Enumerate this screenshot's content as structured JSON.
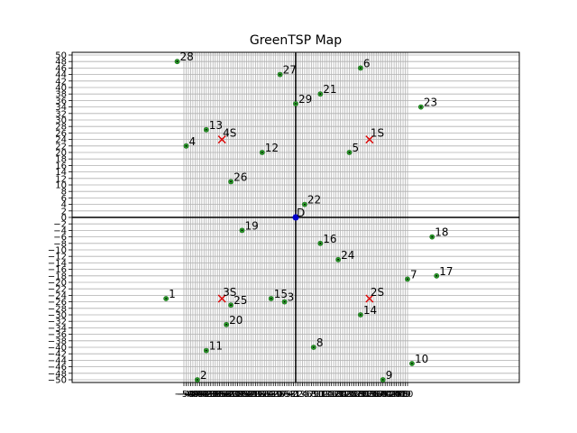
{
  "chart_data": {
    "type": "scatter",
    "title": "GreenTSP Map",
    "xlabel": "",
    "ylabel": "",
    "xlim": [
      -50,
      50
    ],
    "ylim": [
      -50,
      50
    ],
    "grid": true,
    "x_ticks": [
      -50,
      -49,
      -48,
      -47,
      -46,
      -45,
      -44,
      -43,
      -42,
      -41,
      -40,
      -39,
      -38,
      -37,
      -36,
      -35,
      -34,
      -33,
      -32,
      -31,
      -30,
      -29,
      -28,
      -27,
      -26,
      -25,
      -24,
      -23,
      -22,
      -21,
      -20,
      -19,
      -18,
      -17,
      -16,
      -15,
      -14,
      -13,
      -12,
      -11,
      -10,
      -9,
      -8,
      -7,
      -6,
      -5,
      -4,
      -3,
      -2,
      -1,
      0,
      1,
      2,
      3,
      4,
      5,
      6,
      7,
      8,
      9,
      10,
      11,
      12,
      13,
      14,
      15,
      16,
      17,
      18,
      19,
      20,
      21,
      22,
      23,
      24,
      25,
      26,
      27,
      28,
      29,
      30,
      31,
      32,
      33,
      34,
      35,
      36,
      37,
      38,
      39,
      40,
      41,
      42,
      43,
      44,
      45,
      46,
      47,
      48,
      49,
      50
    ],
    "y_ticks": [
      -50,
      -48,
      -46,
      -44,
      -42,
      -40,
      -38,
      -36,
      -34,
      -32,
      -30,
      -28,
      -26,
      -24,
      -22,
      -20,
      -18,
      -16,
      -14,
      -12,
      -10,
      -8,
      -6,
      -4,
      -2,
      0,
      2,
      4,
      6,
      8,
      10,
      12,
      14,
      16,
      18,
      20,
      22,
      24,
      26,
      28,
      30,
      32,
      34,
      36,
      38,
      40,
      42,
      44,
      46,
      48,
      50
    ],
    "depot": {
      "label": "D",
      "x": 0,
      "y": 0,
      "color": "#0000cc"
    },
    "stations": [
      {
        "label": "1S",
        "x": 33,
        "y": 24
      },
      {
        "label": "2S",
        "x": 33,
        "y": -25
      },
      {
        "label": "3S",
        "x": -33,
        "y": -25
      },
      {
        "label": "4S",
        "x": -33,
        "y": 24
      }
    ],
    "station_color": "#dd0000",
    "customers": [
      {
        "label": "1",
        "x": -58,
        "y": -25
      },
      {
        "label": "2",
        "x": -44,
        "y": -50
      },
      {
        "label": "3",
        "x": -5,
        "y": -26
      },
      {
        "label": "4",
        "x": -49,
        "y": 22
      },
      {
        "label": "5",
        "x": 24,
        "y": 20
      },
      {
        "label": "6",
        "x": 29,
        "y": 46
      },
      {
        "label": "7",
        "x": 50,
        "y": -19
      },
      {
        "label": "8",
        "x": 8,
        "y": -40
      },
      {
        "label": "9",
        "x": 39,
        "y": -50
      },
      {
        "label": "10",
        "x": 52,
        "y": -45
      },
      {
        "label": "11",
        "x": -40,
        "y": -41
      },
      {
        "label": "12",
        "x": -15,
        "y": 20
      },
      {
        "label": "13",
        "x": -40,
        "y": 27
      },
      {
        "label": "14",
        "x": 29,
        "y": -30
      },
      {
        "label": "15",
        "x": -11,
        "y": -25
      },
      {
        "label": "16",
        "x": 11,
        "y": -8
      },
      {
        "label": "17",
        "x": 63,
        "y": -18
      },
      {
        "label": "18",
        "x": 61,
        "y": -6
      },
      {
        "label": "19",
        "x": -24,
        "y": -4
      },
      {
        "label": "20",
        "x": -31,
        "y": -33
      },
      {
        "label": "21",
        "x": 11,
        "y": 38
      },
      {
        "label": "22",
        "x": 4,
        "y": 4
      },
      {
        "label": "23",
        "x": 56,
        "y": 34
      },
      {
        "label": "24",
        "x": 19,
        "y": -13
      },
      {
        "label": "25",
        "x": -29,
        "y": -27
      },
      {
        "label": "26",
        "x": -29,
        "y": 11
      },
      {
        "label": "27",
        "x": -7,
        "y": 44
      },
      {
        "label": "28",
        "x": -53,
        "y": 48
      },
      {
        "label": "29",
        "x": 0,
        "y": 35
      }
    ],
    "customer_color": "#2ca02c"
  }
}
